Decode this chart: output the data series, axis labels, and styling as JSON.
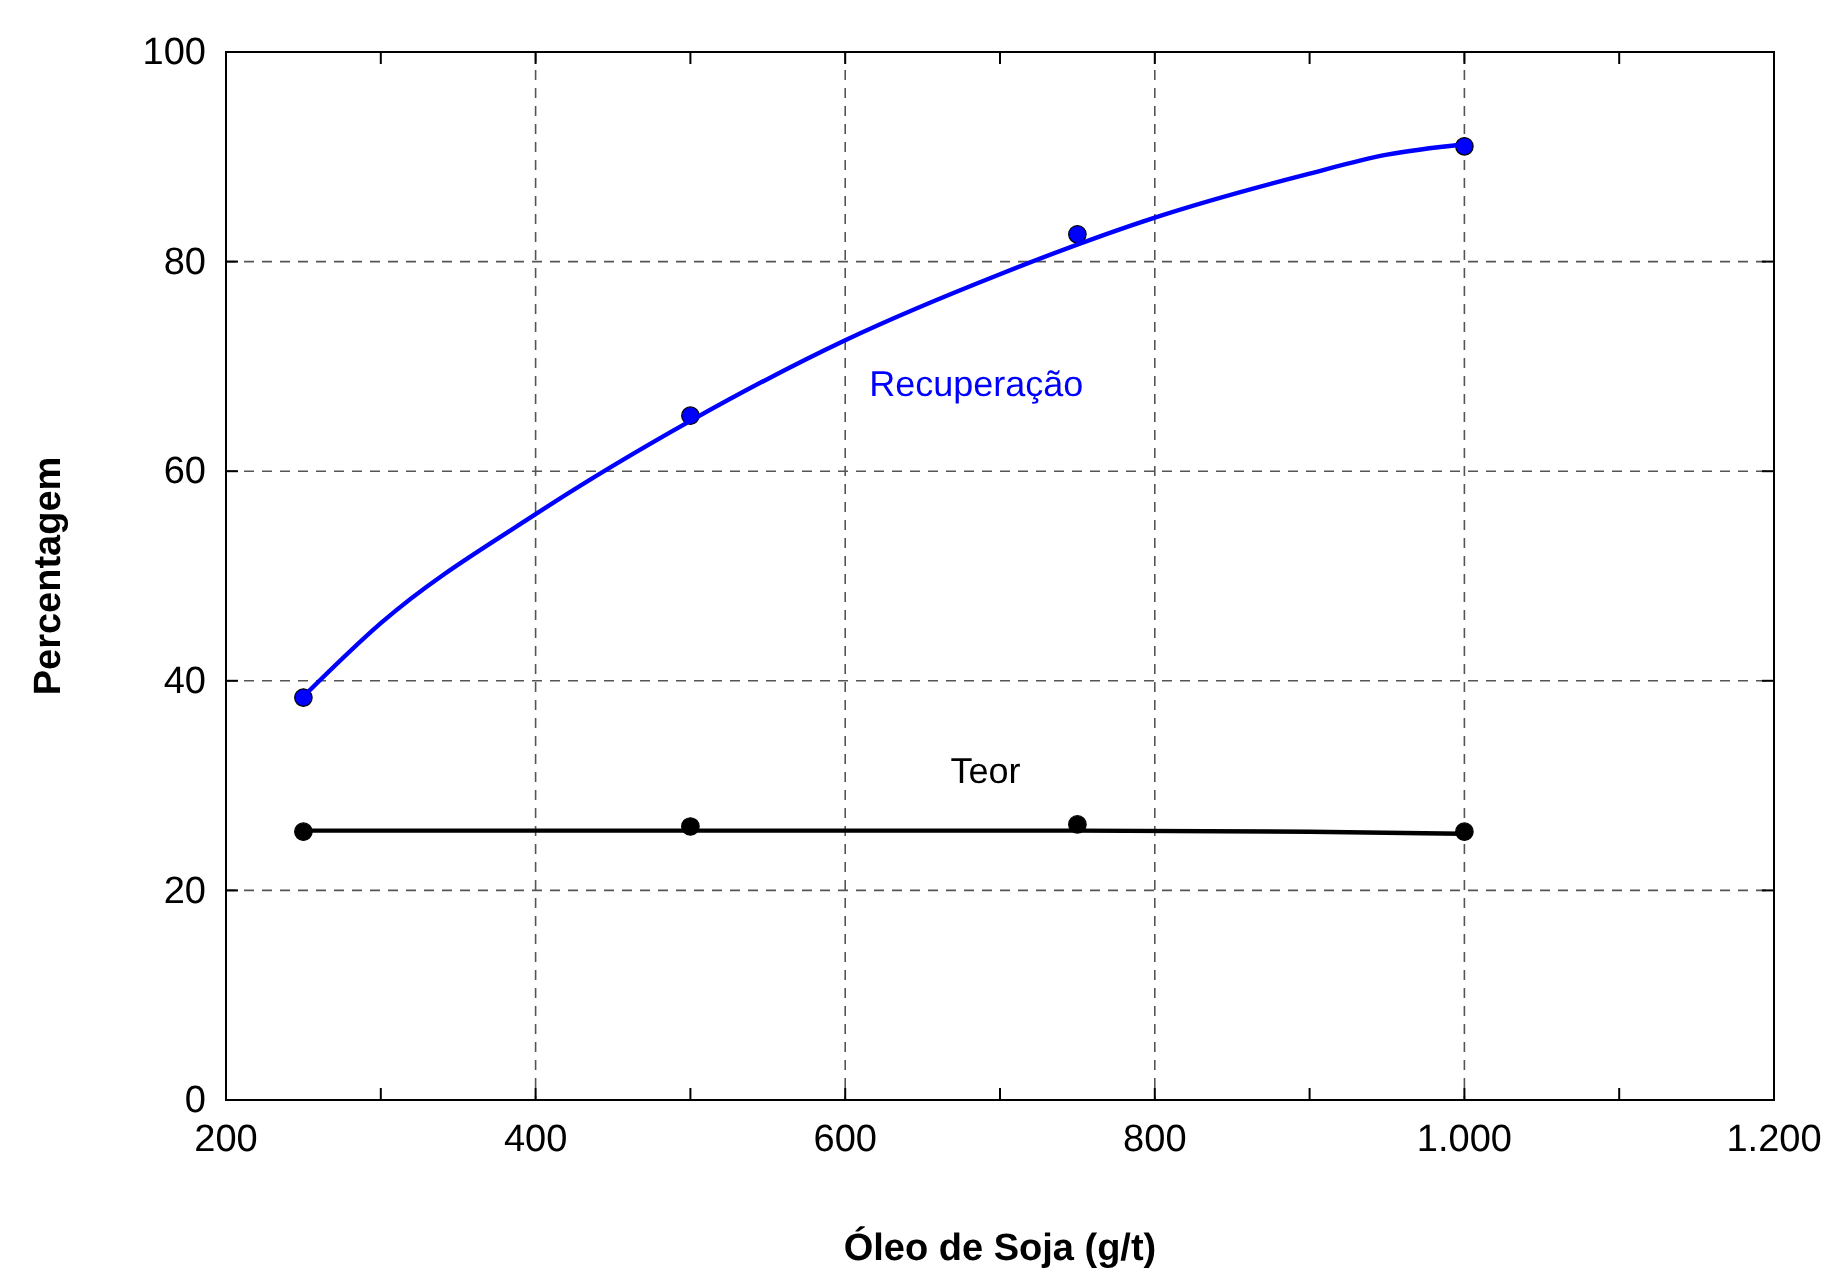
{
  "chart_data": {
    "type": "scatter",
    "xlabel": "Óleo de Soja (g/t)",
    "ylabel": "Percentagem",
    "xlim": [
      200,
      1200
    ],
    "ylim": [
      0,
      100
    ],
    "xticks": [
      200,
      {
        "value": 300,
        "label": null
      },
      400,
      {
        "value": 500,
        "label": null
      },
      600,
      {
        "value": 700,
        "label": null
      },
      800,
      {
        "value": 900,
        "label": null
      },
      {
        "value": 1000,
        "label": "1.000"
      },
      {
        "value": 1100,
        "label": null
      },
      {
        "value": 1200,
        "label": "1.200"
      }
    ],
    "yticks": [
      0,
      20,
      40,
      60,
      80,
      100
    ],
    "grid": true,
    "marker": "circle",
    "line_style": "solid",
    "series": [
      {
        "color": "#0000ff",
        "x": [
          250,
          500,
          750,
          1000
        ],
        "values": [
          38.4,
          65.3,
          82.6,
          91.0
        ]
      },
      {
        "color": "#000000",
        "x": [
          250,
          500,
          750,
          1000
        ],
        "values": [
          25.6,
          26.1,
          26.3,
          25.6
        ]
      },
      {
        "type": "line",
        "marker": "none",
        "name": "Recuperação",
        "color": "#0000ff",
        "x": [
          250,
          300,
          400,
          500,
          600,
          700,
          800,
          900,
          950,
          1000
        ],
        "values": [
          38.5,
          45.5,
          55.9,
          64.8,
          72.5,
          78.8,
          84.2,
          88.4,
          90.2,
          91.2
        ]
      },
      {
        "type": "line",
        "marker": "none",
        "name": "Teor",
        "color": "#000000",
        "x": [
          250,
          500,
          750,
          900,
          1000
        ],
        "values": [
          25.7,
          25.7,
          25.7,
          25.6,
          25.4
        ]
      }
    ]
  }
}
